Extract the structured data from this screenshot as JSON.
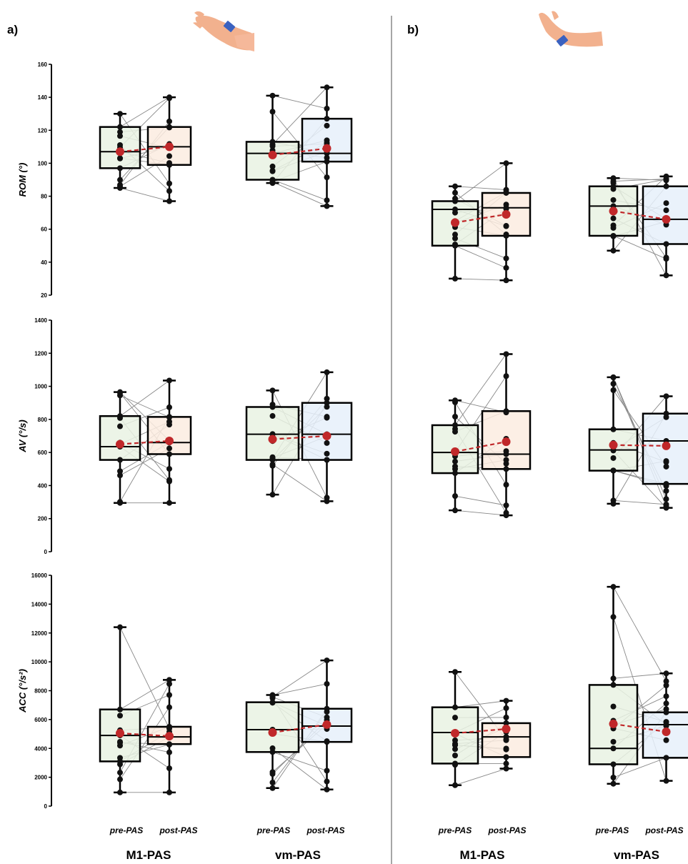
{
  "panels": [
    {
      "letter": "a)",
      "hand": "hand-flexion-icon"
    },
    {
      "letter": "b)",
      "hand": "hand-extension-icon"
    }
  ],
  "conditions": [
    "pre-PAS",
    "post-PAS"
  ],
  "groups": [
    "M1-PAS",
    "vm-PAS"
  ],
  "colors": {
    "pre_fill": "#e9f2e3",
    "m1_post_fill": "#fbece1",
    "vm_post_fill": "#e6f0fa",
    "mean": "#c0282a",
    "paired_line": "#888888",
    "point": "#111111",
    "divider": "#a6a6a6"
  },
  "chart_data": [
    {
      "type": "box",
      "panel": "a)",
      "ylabel": "ROM (°)",
      "ylim": [
        20,
        160
      ],
      "yticks": [
        20,
        40,
        60,
        80,
        100,
        120,
        140,
        160
      ],
      "series": [
        {
          "group": "M1-PAS",
          "condition": "pre-PAS",
          "min": 85,
          "q1": 97,
          "median": 107,
          "q3": 122,
          "max": 130,
          "mean": 107
        },
        {
          "group": "M1-PAS",
          "condition": "post-PAS",
          "min": 77,
          "q1": 99,
          "median": 110,
          "q3": 122,
          "max": 140,
          "mean": 110
        },
        {
          "group": "vm-PAS",
          "condition": "pre-PAS",
          "min": 88,
          "q1": 90,
          "median": 106,
          "q3": 113,
          "max": 141,
          "mean": 105
        },
        {
          "group": "vm-PAS",
          "condition": "post-PAS",
          "min": 74,
          "q1": 101,
          "median": 106,
          "q3": 127,
          "max": 146,
          "mean": 109
        }
      ]
    },
    {
      "type": "box",
      "panel": "a)",
      "ylabel": "AV (°/s)",
      "ylim": [
        0,
        1400
      ],
      "yticks": [
        0,
        200,
        400,
        600,
        800,
        1000,
        1200,
        1400
      ],
      "series": [
        {
          "group": "M1-PAS",
          "condition": "pre-PAS",
          "min": 295,
          "q1": 555,
          "median": 635,
          "q3": 820,
          "max": 965,
          "mean": 650
        },
        {
          "group": "M1-PAS",
          "condition": "post-PAS",
          "min": 295,
          "q1": 590,
          "median": 660,
          "q3": 815,
          "max": 1035,
          "mean": 670
        },
        {
          "group": "vm-PAS",
          "condition": "pre-PAS",
          "min": 345,
          "q1": 555,
          "median": 710,
          "q3": 875,
          "max": 975,
          "mean": 680
        },
        {
          "group": "vm-PAS",
          "condition": "post-PAS",
          "min": 305,
          "q1": 555,
          "median": 710,
          "q3": 900,
          "max": 1085,
          "mean": 700
        }
      ]
    },
    {
      "type": "box",
      "panel": "a)",
      "ylabel": "ACC (°/s²)",
      "ylim": [
        0,
        16000
      ],
      "yticks": [
        0,
        2000,
        4000,
        6000,
        8000,
        10000,
        12000,
        14000,
        16000
      ],
      "series": [
        {
          "group": "M1-PAS",
          "condition": "pre-PAS",
          "min": 950,
          "q1": 3100,
          "median": 4900,
          "q3": 6700,
          "max": 12400,
          "mean": 5050
        },
        {
          "group": "M1-PAS",
          "condition": "post-PAS",
          "min": 950,
          "q1": 4300,
          "median": 4800,
          "q3": 5500,
          "max": 8750,
          "mean": 4850
        },
        {
          "group": "vm-PAS",
          "condition": "pre-PAS",
          "min": 1250,
          "q1": 3750,
          "median": 5300,
          "q3": 7200,
          "max": 7700,
          "mean": 5100
        },
        {
          "group": "vm-PAS",
          "condition": "post-PAS",
          "min": 1150,
          "q1": 4450,
          "median": 5550,
          "q3": 6750,
          "max": 10100,
          "mean": 5650
        }
      ]
    },
    {
      "type": "box",
      "panel": "b)",
      "ylabel": "ROM (°)",
      "ylim": [
        20,
        160
      ],
      "series": [
        {
          "group": "M1-PAS",
          "condition": "pre-PAS",
          "min": 30,
          "q1": 50,
          "median": 72,
          "q3": 77,
          "max": 86,
          "mean": 64
        },
        {
          "group": "M1-PAS",
          "condition": "post-PAS",
          "min": 29,
          "q1": 56,
          "median": 73,
          "q3": 82,
          "max": 100,
          "mean": 69
        },
        {
          "group": "vm-PAS",
          "condition": "pre-PAS",
          "min": 47,
          "q1": 56,
          "median": 74,
          "q3": 86,
          "max": 91,
          "mean": 71
        },
        {
          "group": "vm-PAS",
          "condition": "post-PAS",
          "min": 32,
          "q1": 51,
          "median": 66,
          "q3": 86,
          "max": 92,
          "mean": 66
        }
      ]
    },
    {
      "type": "box",
      "panel": "b)",
      "ylabel": "AV (°/s)",
      "ylim": [
        0,
        1400
      ],
      "series": [
        {
          "group": "M1-PAS",
          "condition": "pre-PAS",
          "min": 250,
          "q1": 475,
          "median": 600,
          "q3": 765,
          "max": 915,
          "mean": 605
        },
        {
          "group": "M1-PAS",
          "condition": "post-PAS",
          "min": 220,
          "q1": 500,
          "median": 590,
          "q3": 850,
          "max": 1195,
          "mean": 665
        },
        {
          "group": "vm-PAS",
          "condition": "pre-PAS",
          "min": 290,
          "q1": 490,
          "median": 615,
          "q3": 740,
          "max": 1055,
          "mean": 645
        },
        {
          "group": "vm-PAS",
          "condition": "post-PAS",
          "min": 265,
          "q1": 410,
          "median": 670,
          "q3": 835,
          "max": 940,
          "mean": 640
        }
      ]
    },
    {
      "type": "box",
      "panel": "b)",
      "ylabel": "ACC (°/s²)",
      "ylim": [
        0,
        16000
      ],
      "series": [
        {
          "group": "M1-PAS",
          "condition": "pre-PAS",
          "min": 1450,
          "q1": 2950,
          "median": 5100,
          "q3": 6850,
          "max": 9300,
          "mean": 5050
        },
        {
          "group": "M1-PAS",
          "condition": "post-PAS",
          "min": 2600,
          "q1": 3400,
          "median": 4800,
          "q3": 5750,
          "max": 7300,
          "mean": 5350
        },
        {
          "group": "vm-PAS",
          "condition": "pre-PAS",
          "min": 1550,
          "q1": 2900,
          "median": 4000,
          "q3": 8400,
          "max": 15200,
          "mean": 5700
        },
        {
          "group": "vm-PAS",
          "condition": "post-PAS",
          "min": 1750,
          "q1": 3350,
          "median": 5650,
          "q3": 6500,
          "max": 9200,
          "mean": 5150
        }
      ]
    }
  ]
}
